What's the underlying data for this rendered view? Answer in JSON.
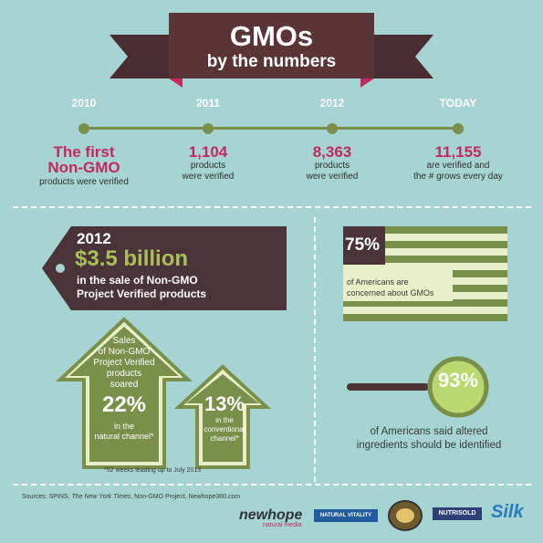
{
  "header": {
    "title": "GMOs",
    "subtitle": "by the numbers"
  },
  "colors": {
    "background": "#a6d4d2",
    "banner": "#5b3438",
    "pink": "#c2295f",
    "green": "#7a8f49",
    "tag": "#4a3439",
    "light_green": "#e9f0c9"
  },
  "timeline": [
    {
      "year": "2010",
      "big": "The first\nNon-GMO",
      "small": "products were verified"
    },
    {
      "year": "2011",
      "big": "1,104",
      "small": "products\nwere verified"
    },
    {
      "year": "2012",
      "big": "8,363",
      "small": "products\nwere verified"
    },
    {
      "year": "TODAY",
      "big": "11,155",
      "small": "are verified and\nthe # grows every day"
    }
  ],
  "tag": {
    "year": "2012",
    "amount": "$3.5 billion",
    "line1": "in the sale of Non-GMO",
    "line2": "Project Verified products"
  },
  "arrow_left": {
    "text": "Sales\nof Non-GMO\nProject Verified\nproducts\nsoared",
    "percent": "22%",
    "caption": "in the\nnatural channel*"
  },
  "arrow_right": {
    "percent": "13%",
    "caption": "in the\nconventional\nchannel*"
  },
  "footnote_weeks": "*52 weeks leading up to July 2013",
  "flag": {
    "percent": "75%",
    "text": "of Americans are\nconcerned about GMOs"
  },
  "magnifier": {
    "percent": "93%",
    "text": "of Americans said altered\ningredients should be identified"
  },
  "sources": {
    "prefix": "Sources: SPINS, ",
    "nyt": "The New York Times",
    "suffix": ", Non-GMO Project, Newhope360.com"
  },
  "logos": {
    "newhope": "newhope",
    "newhope_sub": "natural media",
    "natural_vitality": "NATURAL VITALITY",
    "nutrisold": "NUTRISOLD",
    "silk": "Silk"
  }
}
